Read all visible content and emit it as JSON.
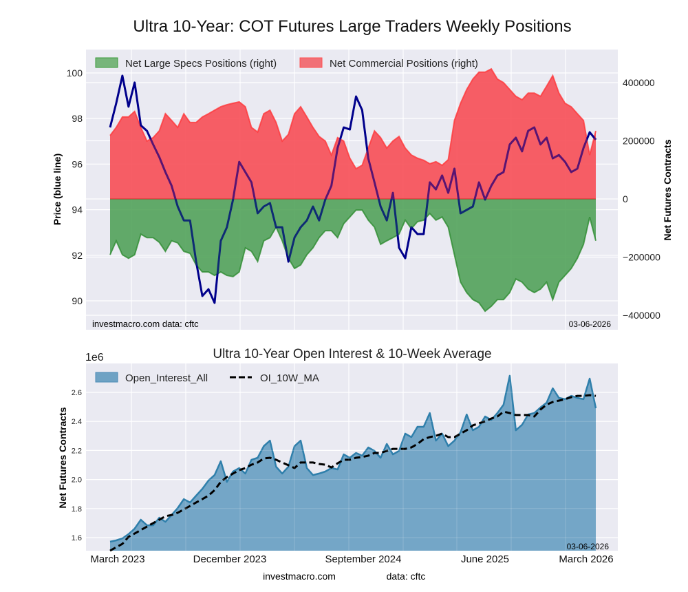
{
  "figure": {
    "title": "Ultra 10-Year: COT Futures Large Traders Weekly Positions",
    "footer_site": "investmacro.com",
    "footer_data": "data: cftc"
  },
  "colors": {
    "price_line": "#00008b",
    "commercial_fill": "#f25a62",
    "commercial_line": "#ff3030",
    "specs_fill": "#5aa85c",
    "specs_line": "#2e8b2e",
    "oi_fill": "#6ea2c4",
    "oi_line": "#2f7fab",
    "ma_line": "#000000",
    "plot_bg": "#eaeaf2"
  },
  "chart_data": [
    {
      "type": "area",
      "title": "Ultra 10-Year: COT Futures Large Traders Weekly Positions",
      "ylabel": "Price (blue line)",
      "ylabel_right": "Net Futures Contracts",
      "ylim": [
        89.0,
        101.0
      ],
      "ylim_right": [
        -400000,
        400000
      ],
      "yticks": [
        "90",
        "92",
        "94",
        "96",
        "98",
        "100"
      ],
      "yticks_right": [
        "400000",
        "200000",
        "0",
        "−200000",
        "−400000"
      ],
      "grid": true,
      "legend_position": "top-left",
      "legend": [
        "Net Large Specs Positions (right)",
        "Net Commercial Positions (right)"
      ],
      "annotation_left": "investmacro.com    data: cftc",
      "annotation_right": "03-06-2026",
      "x_start": "March 2023",
      "x_end": "03-06-2026",
      "series": [
        {
          "name": "Price",
          "axis": "left",
          "values": [
            97.61,
            98.67,
            99.88,
            98.52,
            99.58,
            97.7,
            97.46,
            96.86,
            96.31,
            95.65,
            95.05,
            94.14,
            93.53,
            93.53,
            91.72,
            90.21,
            90.51,
            89.91,
            92.63,
            93.23,
            94.44,
            96.1,
            95.65,
            95.2,
            93.84,
            94.14,
            94.29,
            93.23,
            93.23,
            91.72,
            92.78,
            93.23,
            93.53,
            94.14,
            93.53,
            94.44,
            95.05,
            96.71,
            97.61,
            97.52,
            98.97,
            98.37,
            96.25,
            95.2,
            94.14,
            93.53,
            94.74,
            92.33,
            91.87,
            93.23,
            92.93,
            92.93,
            95.2,
            94.89,
            95.5,
            94.74,
            95.8,
            93.84,
            93.99,
            94.14,
            95.2,
            94.44,
            95.05,
            95.5,
            95.65,
            96.86,
            97.16,
            96.56,
            97.46,
            97.61,
            96.86,
            97.16,
            96.25,
            96.4,
            96.1,
            95.65,
            95.8,
            96.71,
            97.4,
            97.07
          ]
        },
        {
          "name": "Net Commercial Positions (right)",
          "axis": "right",
          "values": [
            218000,
            246000,
            282000,
            282000,
            301000,
            246000,
            199000,
            211000,
            234000,
            293000,
            270000,
            246000,
            293000,
            263000,
            263000,
            282000,
            293000,
            305000,
            317000,
            324000,
            329000,
            334000,
            317000,
            246000,
            230000,
            293000,
            305000,
            263000,
            199000,
            222000,
            293000,
            317000,
            282000,
            246000,
            215000,
            199000,
            151000,
            211000,
            199000,
            140000,
            104000,
            116000,
            175000,
            234000,
            211000,
            175000,
            199000,
            215000,
            175000,
            151000,
            140000,
            133000,
            121000,
            128000,
            116000,
            135000,
            270000,
            329000,
            376000,
            412000,
            436000,
            436000,
            447000,
            412000,
            400000,
            376000,
            353000,
            341000,
            364000,
            364000,
            353000,
            388000,
            424000,
            364000,
            329000,
            317000,
            293000,
            270000,
            151000,
            234000
          ]
        },
        {
          "name": "Net Large Specs Positions (right)",
          "axis": "right",
          "values": [
            -192000,
            -144000,
            -192000,
            -204000,
            -192000,
            -121000,
            -133000,
            -133000,
            -149000,
            -180000,
            -144000,
            -151000,
            -180000,
            -187000,
            -227000,
            -251000,
            -251000,
            -263000,
            -251000,
            -263000,
            -267000,
            -251000,
            -168000,
            -180000,
            -215000,
            -144000,
            -133000,
            -97000,
            -144000,
            -204000,
            -239000,
            -227000,
            -192000,
            -168000,
            -133000,
            -109000,
            -109000,
            -133000,
            -85000,
            -62000,
            -38000,
            -38000,
            -73000,
            -97000,
            -156000,
            -144000,
            -133000,
            -121000,
            -73000,
            -102000,
            -78000,
            -73000,
            -50000,
            -73000,
            -62000,
            -97000,
            -192000,
            -286000,
            -322000,
            -346000,
            -357000,
            -386000,
            -369000,
            -346000,
            -346000,
            -322000,
            -275000,
            -286000,
            -310000,
            -322000,
            -310000,
            -286000,
            -346000,
            -286000,
            -263000,
            -239000,
            -204000,
            -156000,
            -62000,
            -144000
          ]
        }
      ]
    },
    {
      "type": "area",
      "title": "Ultra 10-Year Open Interest & 10-Week Average",
      "ylabel": "Net Futures Contracts",
      "offset_label": "1e6",
      "ylim": [
        1.51,
        2.78
      ],
      "yticks": [
        "1.6",
        "1.8",
        "2.0",
        "2.2",
        "2.4",
        "2.6"
      ],
      "xticks": [
        "March 2023",
        "December 2023",
        "September 2024",
        "June 2025",
        "March 2026"
      ],
      "grid": true,
      "legend_position": "top-left",
      "legend": [
        "Open_Interest_All",
        "OI_10W_MA"
      ],
      "annotation_right": "03-06-2026",
      "series": [
        {
          "name": "Open_Interest_All",
          "style": "area",
          "values": [
            1.572,
            1.581,
            1.595,
            1.624,
            1.662,
            1.723,
            1.685,
            1.685,
            1.737,
            1.709,
            1.756,
            1.804,
            1.865,
            1.842,
            1.889,
            1.936,
            1.993,
            2.031,
            2.126,
            1.984,
            2.055,
            2.079,
            2.041,
            2.136,
            2.15,
            2.23,
            2.268,
            2.088,
            2.041,
            2.088,
            2.23,
            2.268,
            2.079,
            2.031,
            2.041,
            2.055,
            2.079,
            2.069,
            2.173,
            2.15,
            2.183,
            2.164,
            2.221,
            2.197,
            2.15,
            2.245,
            2.173,
            2.197,
            2.316,
            2.292,
            2.363,
            2.363,
            2.458,
            2.268,
            2.316,
            2.23,
            2.268,
            2.325,
            2.448,
            2.339,
            2.363,
            2.434,
            2.41,
            2.458,
            2.515,
            2.714,
            2.339,
            2.377,
            2.448,
            2.458,
            2.496,
            2.529,
            2.628,
            2.562,
            2.553,
            2.576,
            2.562,
            2.553,
            2.695,
            2.491
          ]
        },
        {
          "name": "OI_10W_MA",
          "style": "dashed",
          "values": [
            1.51,
            1.534,
            1.557,
            1.605,
            1.628,
            1.652,
            1.676,
            1.7,
            1.723,
            1.747,
            1.756,
            1.771,
            1.794,
            1.818,
            1.842,
            1.865,
            1.889,
            1.927,
            1.984,
            2.017,
            2.041,
            2.064,
            2.079,
            2.102,
            2.117,
            2.145,
            2.15,
            2.136,
            2.117,
            2.098,
            2.079,
            2.117,
            2.117,
            2.117,
            2.107,
            2.102,
            2.083,
            2.112,
            2.136,
            2.136,
            2.15,
            2.155,
            2.164,
            2.183,
            2.183,
            2.197,
            2.211,
            2.211,
            2.211,
            2.221,
            2.245,
            2.278,
            2.292,
            2.301,
            2.316,
            2.292,
            2.292,
            2.316,
            2.339,
            2.373,
            2.387,
            2.401,
            2.42,
            2.434,
            2.467,
            2.458,
            2.444,
            2.444,
            2.444,
            2.434,
            2.482,
            2.515,
            2.534,
            2.543,
            2.553,
            2.567,
            2.576,
            2.576,
            2.581,
            2.576
          ]
        }
      ]
    }
  ]
}
